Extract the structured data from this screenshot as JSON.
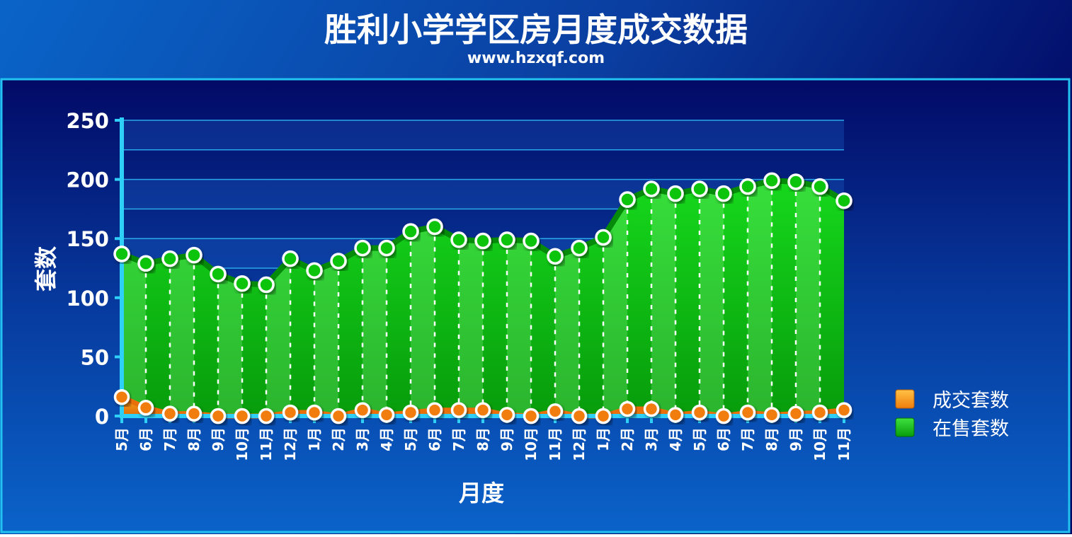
{
  "chart_data": {
    "type": "area",
    "title": "胜利小学学区房月度成交数据",
    "subtitle": "www.hzxqf.com",
    "xlabel": "月度",
    "ylabel": "套数",
    "ylim": [
      0,
      250
    ],
    "yticks": [
      "250",
      "200",
      "150",
      "100",
      "50",
      "0"
    ],
    "grid": true,
    "legend_position": "right",
    "categories": [
      "5月",
      "6月",
      "7月",
      "8月",
      "9月",
      "10月",
      "11月",
      "12月",
      "1月",
      "2月",
      "3月",
      "4月",
      "5月",
      "6月",
      "7月",
      "8月",
      "9月",
      "10月",
      "11月",
      "12月",
      "1月",
      "2月",
      "3月",
      "4月",
      "5月",
      "6月",
      "7月",
      "8月",
      "9月",
      "10月",
      "11月"
    ],
    "series": [
      {
        "name": "成交套数",
        "color": "#f08a10",
        "values": [
          16,
          7,
          2,
          2,
          0,
          0,
          0,
          3,
          3,
          0,
          5,
          1,
          3,
          5,
          5,
          5,
          1,
          0,
          4,
          0,
          0,
          6,
          6,
          1,
          3,
          0,
          3,
          1,
          2,
          3,
          5
        ]
      },
      {
        "name": "在售套数",
        "color": "#1fbf1f",
        "values": [
          137,
          129,
          133,
          136,
          120,
          112,
          111,
          133,
          123,
          131,
          142,
          142,
          156,
          160,
          149,
          148,
          149,
          148,
          135,
          142,
          151,
          183,
          192,
          188,
          192,
          188,
          194,
          199,
          198,
          194,
          182
        ]
      }
    ]
  }
}
